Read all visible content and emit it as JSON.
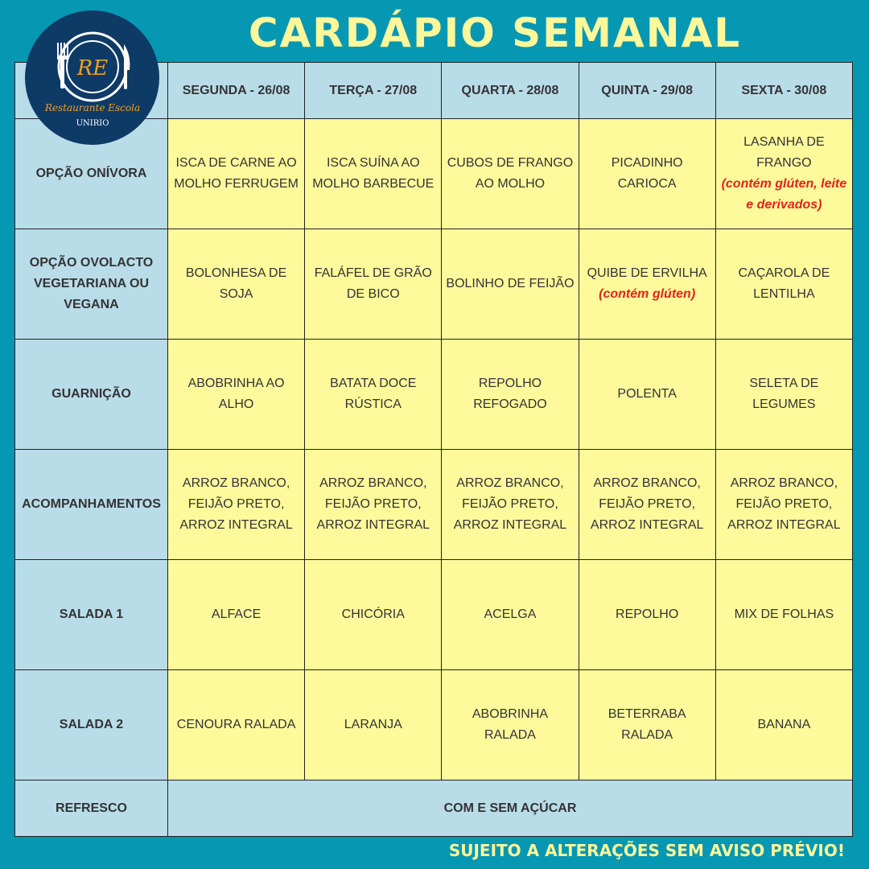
{
  "title": "CARDÁPIO SEMANAL",
  "logo": {
    "initials": "RE",
    "name": "Restaurante Escola",
    "org": "UNIRIO"
  },
  "days": [
    "SEGUNDA - 26/08",
    "TERÇA - 27/08",
    "QUARTA - 28/08",
    "QUINTA - 29/08",
    "SEXTA - 30/08"
  ],
  "rows": [
    {
      "label": "OPÇÃO ONÍVORA",
      "items": [
        {
          "text": "ISCA DE CARNE AO MOLHO FERRUGEM"
        },
        {
          "text": "ISCA SUÍNA AO MOLHO BARBECUE"
        },
        {
          "text": "CUBOS DE FRANGO AO MOLHO"
        },
        {
          "text": "PICADINHO CARIOCA"
        },
        {
          "text": "LASANHA DE FRANGO",
          "note": "(contém glúten, leite e derivados)"
        }
      ]
    },
    {
      "label": "OPÇÃO OVOLACTO VEGETARIANA OU VEGANA",
      "items": [
        {
          "text": "BOLONHESA DE SOJA"
        },
        {
          "text": "FALÁFEL DE GRÃO DE BICO"
        },
        {
          "text": "BOLINHO DE FEIJÃO"
        },
        {
          "text": "QUIBE DE ERVILHA",
          "note": "(contém glúten)"
        },
        {
          "text": "CAÇAROLA DE LENTILHA"
        }
      ]
    },
    {
      "label": "GUARNIÇÃO",
      "items": [
        {
          "text": "ABOBRINHA AO ALHO"
        },
        {
          "text": "BATATA DOCE RÚSTICA"
        },
        {
          "text": "REPOLHO REFOGADO"
        },
        {
          "text": "POLENTA"
        },
        {
          "text": "SELETA DE LEGUMES"
        }
      ]
    },
    {
      "label": "ACOMPANHAMENTOS",
      "items": [
        {
          "text": "ARROZ BRANCO, FEIJÃO PRETO, ARROZ INTEGRAL"
        },
        {
          "text": "ARROZ BRANCO, FEIJÃO PRETO, ARROZ INTEGRAL"
        },
        {
          "text": "ARROZ BRANCO, FEIJÃO PRETO, ARROZ INTEGRAL"
        },
        {
          "text": "ARROZ BRANCO, FEIJÃO PRETO, ARROZ INTEGRAL"
        },
        {
          "text": "ARROZ BRANCO, FEIJÃO PRETO, ARROZ INTEGRAL"
        }
      ]
    },
    {
      "label": "SALADA 1",
      "items": [
        {
          "text": "ALFACE"
        },
        {
          "text": "CHICÓRIA"
        },
        {
          "text": "ACELGA"
        },
        {
          "text": "REPOLHO"
        },
        {
          "text": "MIX DE FOLHAS"
        }
      ]
    },
    {
      "label": "SALADA 2",
      "items": [
        {
          "text": "CENOURA RALADA"
        },
        {
          "text": "LARANJA"
        },
        {
          "text": "ABOBRINHA RALADA"
        },
        {
          "text": "BETERRABA RALADA"
        },
        {
          "text": "BANANA"
        }
      ]
    }
  ],
  "refresco": {
    "label": "REFRESCO",
    "value": "COM E SEM AÇÚCAR"
  },
  "footer": "SUJEITO A ALTERAÇÕES SEM AVISO PRÉVIO!",
  "colors": {
    "background": "#0697b3",
    "title": "#fbf79a",
    "header": "#b9dce9",
    "cell": "#fefa9c",
    "note": "#e0241b",
    "logo": "#0e3a66"
  }
}
